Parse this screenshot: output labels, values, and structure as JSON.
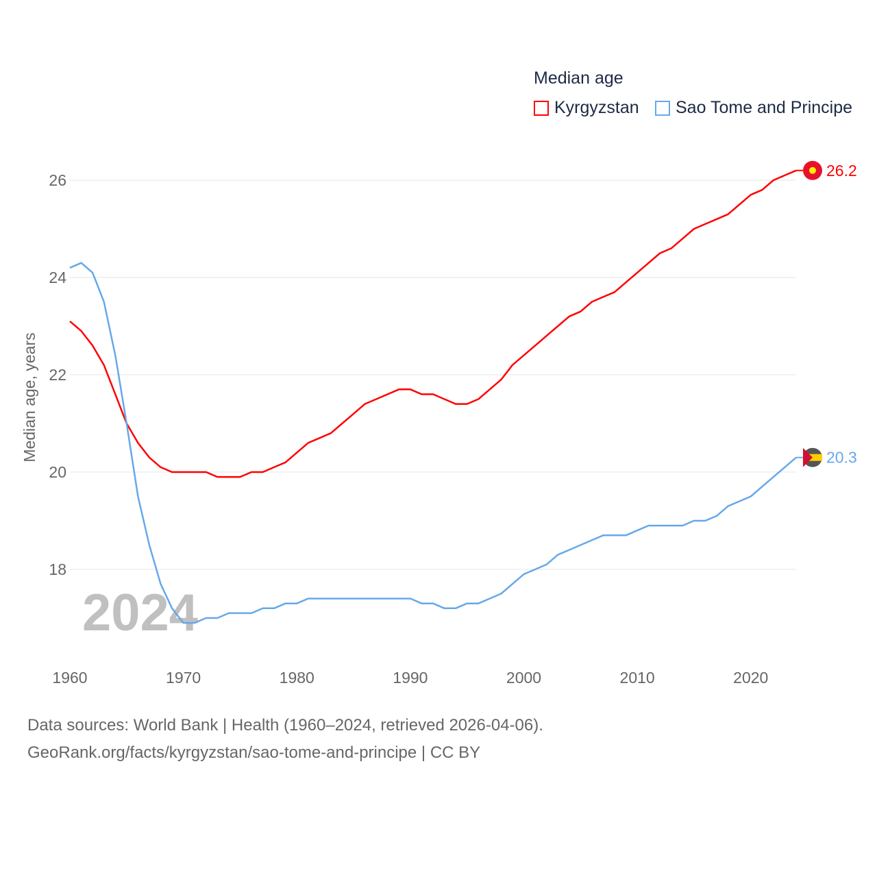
{
  "chart_data": {
    "type": "line",
    "title": "Median age",
    "xlabel": "",
    "ylabel": "Median age, years",
    "xlim": [
      1960,
      2024
    ],
    "ylim": [
      16.6,
      26.5
    ],
    "x_ticks": [
      "1960",
      "1970",
      "1980",
      "1990",
      "2000",
      "2010",
      "2020"
    ],
    "y_ticks": [
      "18",
      "20",
      "22",
      "24",
      "26"
    ],
    "grid": true,
    "legend_position": "top-right",
    "year_watermark": "2024",
    "x": [
      1960,
      1961,
      1962,
      1963,
      1964,
      1965,
      1966,
      1967,
      1968,
      1969,
      1970,
      1971,
      1972,
      1973,
      1974,
      1975,
      1976,
      1977,
      1978,
      1979,
      1980,
      1981,
      1982,
      1983,
      1984,
      1985,
      1986,
      1987,
      1988,
      1989,
      1990,
      1991,
      1992,
      1993,
      1994,
      1995,
      1996,
      1997,
      1998,
      1999,
      2000,
      2001,
      2002,
      2003,
      2004,
      2005,
      2006,
      2007,
      2008,
      2009,
      2010,
      2011,
      2012,
      2013,
      2014,
      2015,
      2016,
      2017,
      2018,
      2019,
      2020,
      2021,
      2022,
      2023,
      2024
    ],
    "series": [
      {
        "name": "Kyrgyzstan",
        "color": "#ff0000",
        "end_label": "26.2",
        "values": [
          23.1,
          22.9,
          22.6,
          22.2,
          21.6,
          21.0,
          20.6,
          20.3,
          20.1,
          20.0,
          20.0,
          20.0,
          20.0,
          19.9,
          19.9,
          19.9,
          20.0,
          20.0,
          20.1,
          20.2,
          20.4,
          20.6,
          20.7,
          20.8,
          21.0,
          21.2,
          21.4,
          21.5,
          21.6,
          21.7,
          21.7,
          21.6,
          21.6,
          21.5,
          21.4,
          21.4,
          21.5,
          21.7,
          21.9,
          22.2,
          22.4,
          22.6,
          22.8,
          23.0,
          23.2,
          23.3,
          23.5,
          23.6,
          23.7,
          23.9,
          24.1,
          24.3,
          24.5,
          24.6,
          24.8,
          25.0,
          25.1,
          25.2,
          25.3,
          25.5,
          25.7,
          25.8,
          26.0,
          26.1,
          26.2
        ]
      },
      {
        "name": "Sao Tome and Principe",
        "color": "#66a8ea",
        "end_label": "20.3",
        "values": [
          24.2,
          24.3,
          24.1,
          23.5,
          22.4,
          21.0,
          19.5,
          18.5,
          17.7,
          17.2,
          16.9,
          16.9,
          17.0,
          17.0,
          17.1,
          17.1,
          17.1,
          17.2,
          17.2,
          17.3,
          17.3,
          17.4,
          17.4,
          17.4,
          17.4,
          17.4,
          17.4,
          17.4,
          17.4,
          17.4,
          17.4,
          17.3,
          17.3,
          17.2,
          17.2,
          17.3,
          17.3,
          17.4,
          17.5,
          17.7,
          17.9,
          18.0,
          18.1,
          18.3,
          18.4,
          18.5,
          18.6,
          18.7,
          18.7,
          18.7,
          18.8,
          18.9,
          18.9,
          18.9,
          18.9,
          19.0,
          19.0,
          19.1,
          19.3,
          19.4,
          19.5,
          19.7,
          19.9,
          20.1,
          20.3
        ]
      }
    ]
  },
  "footer": {
    "line1": "Data sources: World Bank | Health (1960–2024, retrieved 2026-04-06).",
    "line2": "GeoRank.org/facts/kyrgyzstan/sao-tome-and-principe | CC BY"
  }
}
